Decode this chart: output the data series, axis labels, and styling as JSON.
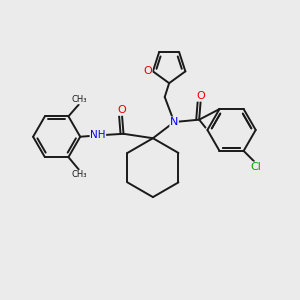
{
  "background_color": "#ebebeb",
  "bond_color": "#1a1a1a",
  "atom_colors": {
    "N": "#0000ee",
    "O": "#ee0000",
    "Cl": "#00aa00",
    "C": "#1a1a1a",
    "H": "#0000ee"
  },
  "figsize": [
    3.0,
    3.0
  ],
  "dpi": 100,
  "xlim": [
    0,
    10
  ],
  "ylim": [
    0,
    10
  ]
}
